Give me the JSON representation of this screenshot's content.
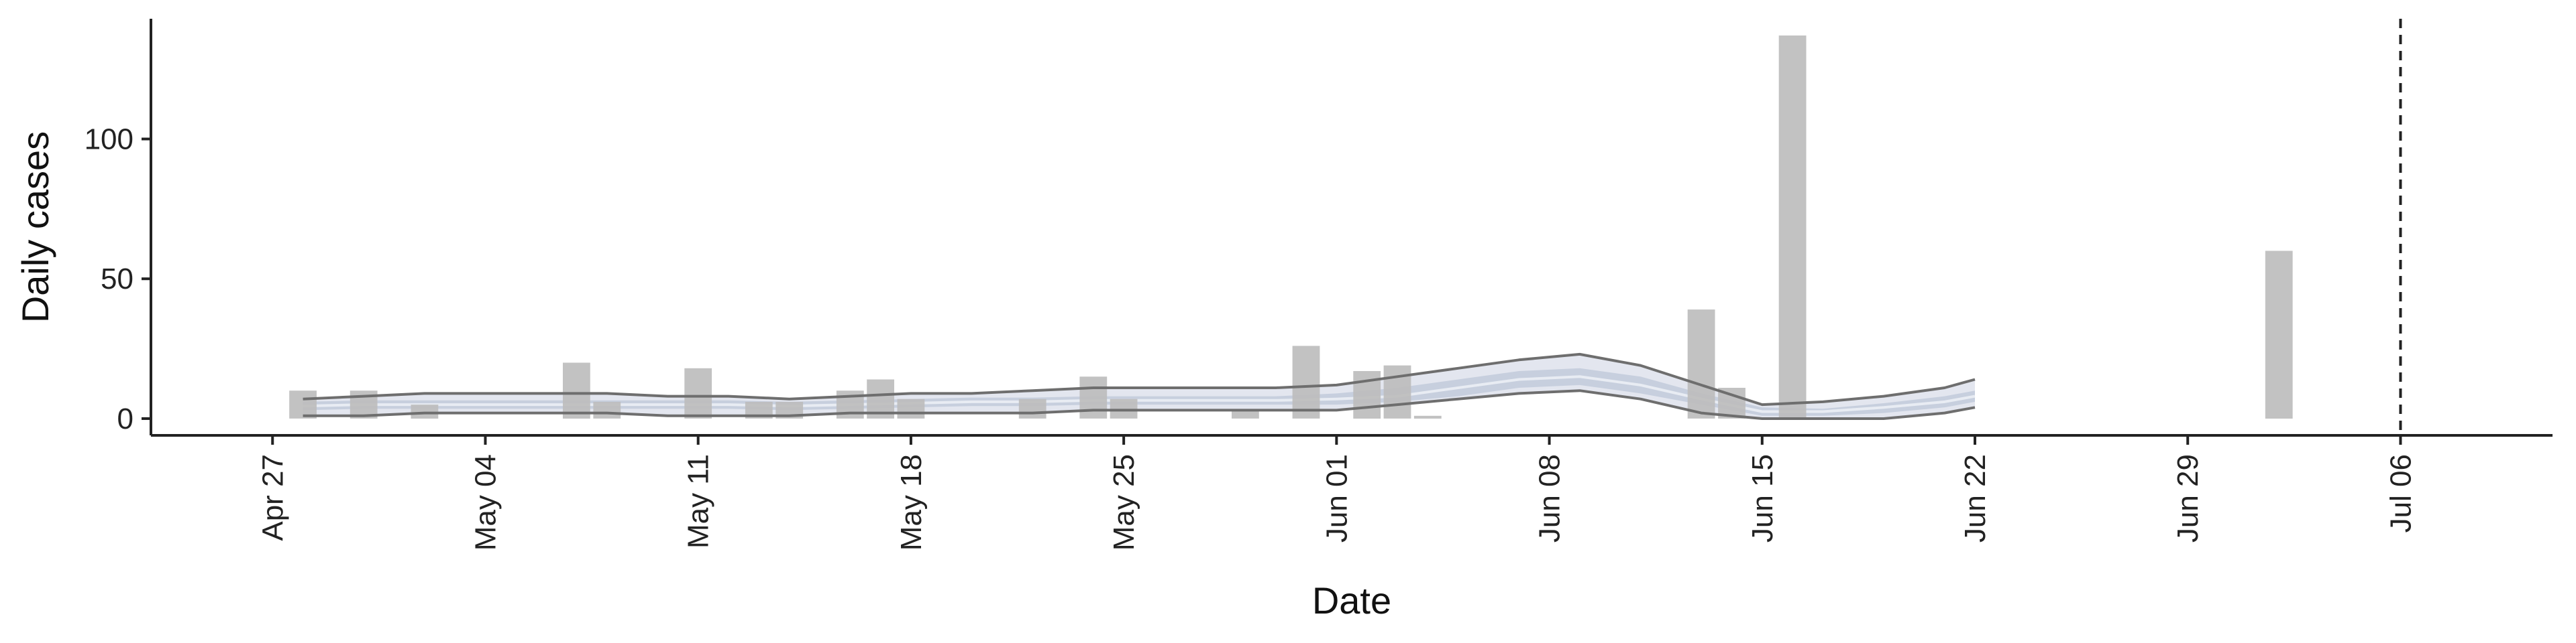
{
  "chart_data": {
    "type": "bar",
    "title": "",
    "xlabel": "Date",
    "ylabel": "Daily cases",
    "xlim": [
      "2020-04-23",
      "2020-07-11"
    ],
    "ylim": [
      -6,
      143
    ],
    "x_tick_labels": [
      {
        "date": "2020-04-27",
        "label": "Apr 27"
      },
      {
        "date": "2020-05-04",
        "label": "May 04"
      },
      {
        "date": "2020-05-11",
        "label": "May 11"
      },
      {
        "date": "2020-05-18",
        "label": "May 18"
      },
      {
        "date": "2020-05-25",
        "label": "May 25"
      },
      {
        "date": "2020-06-01",
        "label": "Jun 01"
      },
      {
        "date": "2020-06-08",
        "label": "Jun 08"
      },
      {
        "date": "2020-06-15",
        "label": "Jun 15"
      },
      {
        "date": "2020-06-22",
        "label": "Jun 22"
      },
      {
        "date": "2020-06-29",
        "label": "Jun 29"
      },
      {
        "date": "2020-07-06",
        "label": "Jul 06"
      }
    ],
    "y_ticks": [
      0,
      50,
      100
    ],
    "grid": false,
    "reference_line": {
      "date": "2020-07-06",
      "style": "dashed",
      "color": "#222222"
    },
    "colors": {
      "bars": "#bdbdbd",
      "outer_band": "#e3e6ef",
      "mid_band": "#c7cfde",
      "median_line": "#e8ecf3",
      "interval_lines": "#6e6e6e"
    },
    "observed_cases": [
      {
        "date": "2020-04-28",
        "value": 10
      },
      {
        "date": "2020-04-30",
        "value": 10
      },
      {
        "date": "2020-05-02",
        "value": 5
      },
      {
        "date": "2020-05-07",
        "value": 20
      },
      {
        "date": "2020-05-08",
        "value": 6
      },
      {
        "date": "2020-05-11",
        "value": 18
      },
      {
        "date": "2020-05-13",
        "value": 6
      },
      {
        "date": "2020-05-14",
        "value": 6
      },
      {
        "date": "2020-05-16",
        "value": 10
      },
      {
        "date": "2020-05-17",
        "value": 14
      },
      {
        "date": "2020-05-18",
        "value": 7
      },
      {
        "date": "2020-05-22",
        "value": 7
      },
      {
        "date": "2020-05-24",
        "value": 15
      },
      {
        "date": "2020-05-25",
        "value": 7
      },
      {
        "date": "2020-05-29",
        "value": 3
      },
      {
        "date": "2020-05-31",
        "value": 26
      },
      {
        "date": "2020-06-02",
        "value": 17
      },
      {
        "date": "2020-06-03",
        "value": 19
      },
      {
        "date": "2020-06-04",
        "value": 1
      },
      {
        "date": "2020-06-13",
        "value": 39
      },
      {
        "date": "2020-06-14",
        "value": 11
      },
      {
        "date": "2020-06-16",
        "value": 137
      },
      {
        "date": "2020-07-02",
        "value": 60
      }
    ],
    "forecast": {
      "dates": [
        "2020-04-28",
        "2020-04-30",
        "2020-05-02",
        "2020-05-04",
        "2020-05-06",
        "2020-05-08",
        "2020-05-10",
        "2020-05-12",
        "2020-05-14",
        "2020-05-16",
        "2020-05-18",
        "2020-05-20",
        "2020-05-22",
        "2020-05-24",
        "2020-05-26",
        "2020-05-28",
        "2020-05-30",
        "2020-06-01",
        "2020-06-03",
        "2020-06-05",
        "2020-06-07",
        "2020-06-09",
        "2020-06-11",
        "2020-06-13",
        "2020-06-15",
        "2020-06-17",
        "2020-06-19",
        "2020-06-21",
        "2020-06-22"
      ],
      "median": [
        4.5,
        5,
        5,
        5,
        5,
        5,
        5,
        5,
        4.5,
        5,
        5.5,
        6,
        6,
        6.5,
        6.5,
        6.5,
        6.5,
        7,
        8,
        11,
        14,
        15,
        12,
        7,
        2.5,
        2.5,
        4,
        6,
        8
      ],
      "upper_50": [
        6,
        6.5,
        6.5,
        6.5,
        6.5,
        6.5,
        6.5,
        6.5,
        6,
        6.5,
        7,
        7.5,
        7.5,
        8,
        8,
        8,
        8,
        9,
        11,
        14,
        17,
        18,
        15,
        9,
        4,
        3.5,
        5.5,
        8,
        10
      ],
      "lower_50": [
        3,
        3.5,
        3.5,
        3.5,
        3.5,
        3.5,
        3.5,
        3.5,
        3,
        3.5,
        4,
        4.5,
        4.5,
        5,
        5,
        5,
        5,
        5,
        6,
        8,
        11,
        12,
        9,
        5,
        1,
        1,
        2,
        4,
        6
      ],
      "upper_90": [
        7,
        8,
        9,
        9,
        9,
        9,
        8,
        8,
        7,
        8,
        9,
        9,
        10,
        11,
        11,
        11,
        11,
        12,
        15,
        18,
        21,
        23,
        19,
        12,
        5,
        6,
        8,
        11,
        14
      ],
      "lower_90": [
        1,
        1,
        2,
        2,
        2,
        2,
        1,
        1,
        1,
        2,
        2,
        2,
        2,
        3,
        3,
        3,
        3,
        3,
        5,
        7,
        9,
        10,
        7,
        2,
        0,
        0,
        0,
        2,
        4
      ]
    }
  }
}
